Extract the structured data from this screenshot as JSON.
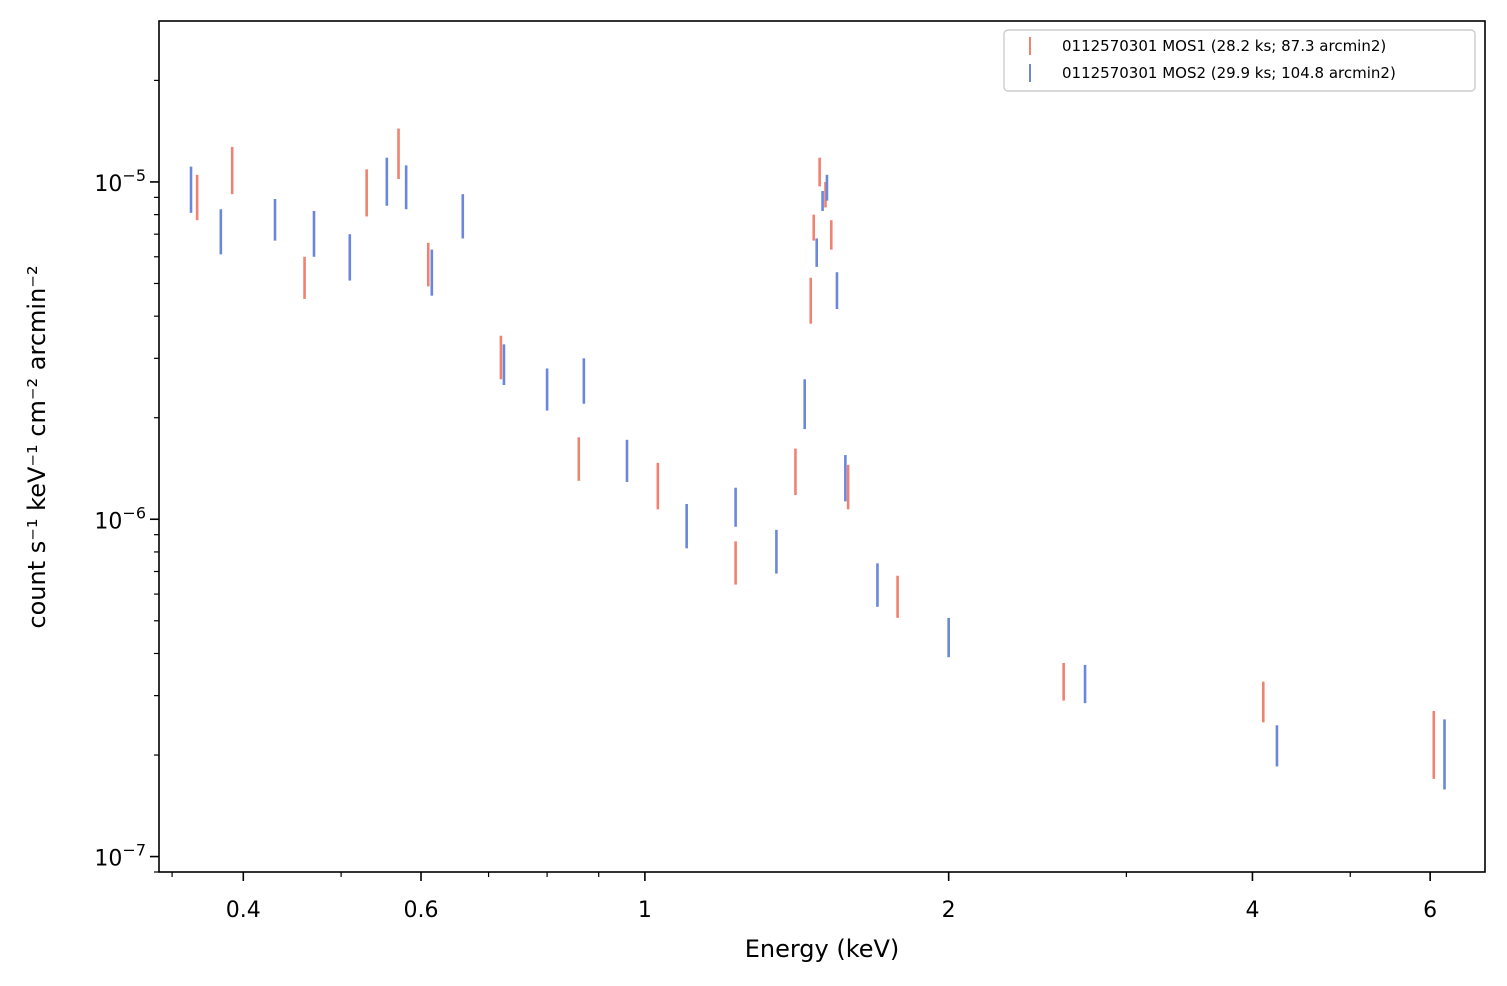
{
  "chart_data": {
    "type": "scatter",
    "x_scale": "log",
    "y_scale": "log",
    "xlim": [
      0.33,
      6.8
    ],
    "ylim": [
      9e-08,
      3e-05
    ],
    "xlabel": "Energy (keV)",
    "ylabel": "count s⁻¹ keV⁻¹ cm⁻² arcmin⁻²",
    "x_ticks": [
      {
        "value": 0.4,
        "label": "0.4"
      },
      {
        "value": 0.6,
        "label": "0.6"
      },
      {
        "value": 1,
        "label": "1"
      },
      {
        "value": 2,
        "label": "2"
      },
      {
        "value": 4,
        "label": "4"
      },
      {
        "value": 6,
        "label": "6"
      }
    ],
    "x_minor_ticks": [
      0.5,
      0.7,
      0.8,
      0.9,
      3,
      5
    ],
    "y_ticks": [
      {
        "value": 1e-07,
        "base": "10",
        "exp": "−7"
      },
      {
        "value": 1e-06,
        "base": "10",
        "exp": "−6"
      },
      {
        "value": 1e-05,
        "base": "10",
        "exp": "−5"
      }
    ],
    "legend_position": "top-right",
    "grid": false,
    "series": [
      {
        "name": "0112570301 MOS1 (28.2 ks; 87.3 arcmin2)",
        "color": "#f08272",
        "points": [
          {
            "x": 0.36,
            "y_low": 7.7e-06,
            "y_high": 1.05e-05
          },
          {
            "x": 0.39,
            "y_low": 9.2e-06,
            "y_high": 1.27e-05
          },
          {
            "x": 0.46,
            "y_low": 4.5e-06,
            "y_high": 6e-06
          },
          {
            "x": 0.53,
            "y_low": 7.9e-06,
            "y_high": 1.09e-05
          },
          {
            "x": 0.57,
            "y_low": 1.02e-05,
            "y_high": 1.44e-05
          },
          {
            "x": 0.61,
            "y_low": 4.9e-06,
            "y_high": 6.6e-06
          },
          {
            "x": 0.72,
            "y_low": 2.6e-06,
            "y_high": 3.5e-06
          },
          {
            "x": 0.86,
            "y_low": 1.3e-06,
            "y_high": 1.75e-06
          },
          {
            "x": 1.03,
            "y_low": 1.07e-06,
            "y_high": 1.47e-06
          },
          {
            "x": 1.23,
            "y_low": 6.4e-07,
            "y_high": 8.6e-07
          },
          {
            "x": 1.41,
            "y_low": 1.18e-06,
            "y_high": 1.62e-06
          },
          {
            "x": 1.46,
            "y_low": 3.8e-06,
            "y_high": 5.2e-06
          },
          {
            "x": 1.47,
            "y_low": 6.7e-06,
            "y_high": 8e-06
          },
          {
            "x": 1.49,
            "y_low": 9.7e-06,
            "y_high": 1.18e-05
          },
          {
            "x": 1.51,
            "y_low": 8.4e-06,
            "y_high": 1e-05
          },
          {
            "x": 1.53,
            "y_low": 6.3e-06,
            "y_high": 7.7e-06
          },
          {
            "x": 1.59,
            "y_low": 1.07e-06,
            "y_high": 1.45e-06
          },
          {
            "x": 1.78,
            "y_low": 5.1e-07,
            "y_high": 6.8e-07
          },
          {
            "x": 2.6,
            "y_low": 2.9e-07,
            "y_high": 3.75e-07
          },
          {
            "x": 4.1,
            "y_low": 2.5e-07,
            "y_high": 3.3e-07
          },
          {
            "x": 6.05,
            "y_low": 1.7e-07,
            "y_high": 2.7e-07
          }
        ]
      },
      {
        "name": "0112570301 MOS2 (29.9 ks; 104.8 arcmin2)",
        "color": "#6a87dc",
        "points": [
          {
            "x": 0.355,
            "y_low": 8.1e-06,
            "y_high": 1.11e-05
          },
          {
            "x": 0.38,
            "y_low": 6.1e-06,
            "y_high": 8.3e-06
          },
          {
            "x": 0.43,
            "y_low": 6.7e-06,
            "y_high": 8.9e-06
          },
          {
            "x": 0.47,
            "y_low": 6e-06,
            "y_high": 8.2e-06
          },
          {
            "x": 0.51,
            "y_low": 5.1e-06,
            "y_high": 7e-06
          },
          {
            "x": 0.555,
            "y_low": 8.5e-06,
            "y_high": 1.18e-05
          },
          {
            "x": 0.58,
            "y_low": 8.3e-06,
            "y_high": 1.12e-05
          },
          {
            "x": 0.615,
            "y_low": 4.6e-06,
            "y_high": 6.3e-06
          },
          {
            "x": 0.66,
            "y_low": 6.8e-06,
            "y_high": 9.2e-06
          },
          {
            "x": 0.725,
            "y_low": 2.5e-06,
            "y_high": 3.3e-06
          },
          {
            "x": 0.8,
            "y_low": 2.1e-06,
            "y_high": 2.8e-06
          },
          {
            "x": 0.87,
            "y_low": 2.2e-06,
            "y_high": 3e-06
          },
          {
            "x": 0.96,
            "y_low": 1.29e-06,
            "y_high": 1.72e-06
          },
          {
            "x": 1.1,
            "y_low": 8.2e-07,
            "y_high": 1.11e-06
          },
          {
            "x": 1.23,
            "y_low": 9.5e-07,
            "y_high": 1.24e-06
          },
          {
            "x": 1.35,
            "y_low": 6.9e-07,
            "y_high": 9.3e-07
          },
          {
            "x": 1.44,
            "y_low": 1.85e-06,
            "y_high": 2.6e-06
          },
          {
            "x": 1.48,
            "y_low": 5.6e-06,
            "y_high": 6.8e-06
          },
          {
            "x": 1.5,
            "y_low": 8.2e-06,
            "y_high": 9.4e-06
          },
          {
            "x": 1.515,
            "y_low": 8.8e-06,
            "y_high": 1.05e-05
          },
          {
            "x": 1.55,
            "y_low": 4.2e-06,
            "y_high": 5.4e-06
          },
          {
            "x": 1.58,
            "y_low": 1.13e-06,
            "y_high": 1.55e-06
          },
          {
            "x": 1.7,
            "y_low": 5.5e-07,
            "y_high": 7.4e-07
          },
          {
            "x": 2.0,
            "y_low": 3.9e-07,
            "y_high": 5.1e-07
          },
          {
            "x": 2.73,
            "y_low": 2.85e-07,
            "y_high": 3.7e-07
          },
          {
            "x": 4.23,
            "y_low": 1.85e-07,
            "y_high": 2.45e-07
          },
          {
            "x": 6.2,
            "y_low": 1.58e-07,
            "y_high": 2.55e-07
          }
        ]
      }
    ]
  }
}
